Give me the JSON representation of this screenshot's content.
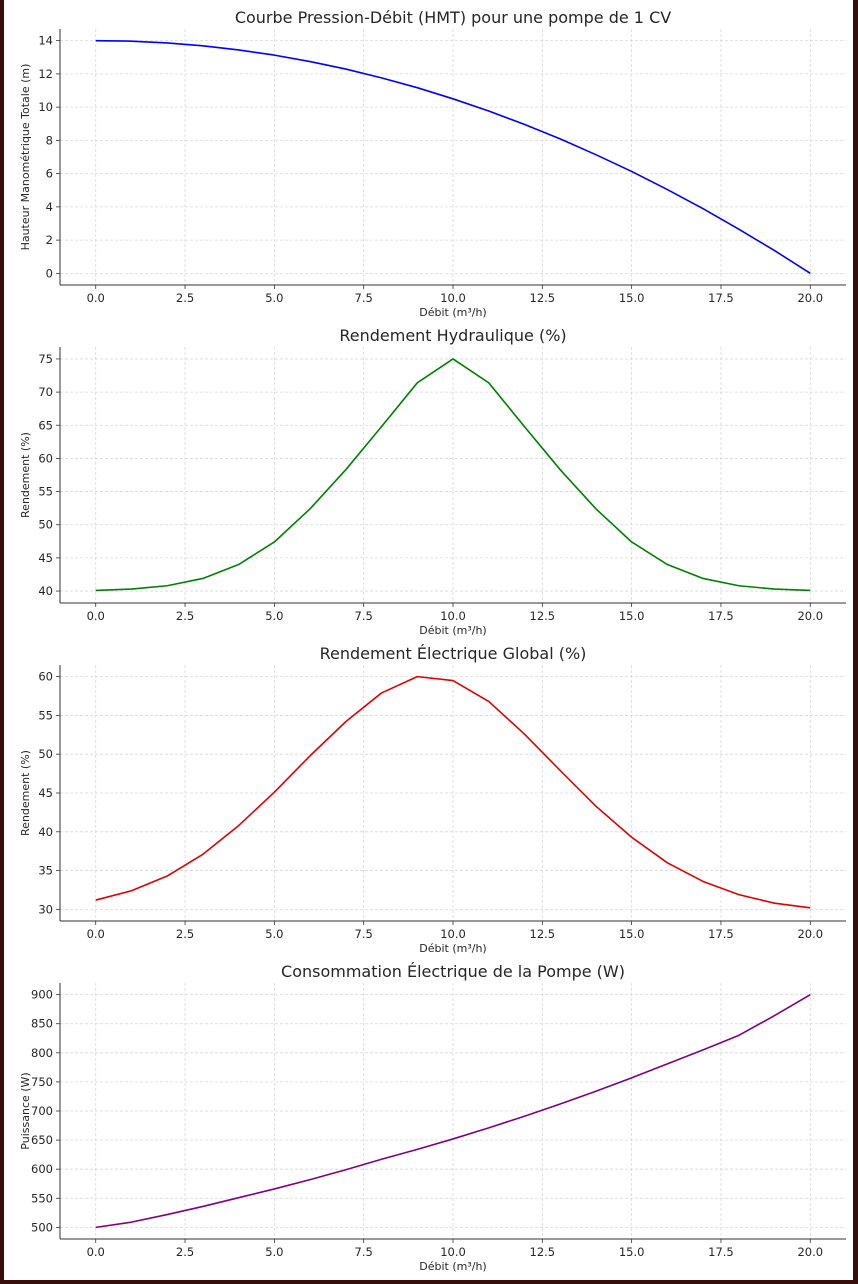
{
  "chart_data": [
    {
      "type": "line",
      "title": "Courbe Pression-Débit (HMT) pour une pompe de 1 CV",
      "xlabel": "Débit (m³/h)",
      "ylabel": "Hauteur Manométrique Totale (m)",
      "xlim": [
        -1,
        21
      ],
      "ylim": [
        -0.7,
        14.7
      ],
      "xticks": [
        "0.0",
        "2.5",
        "5.0",
        "7.5",
        "10.0",
        "12.5",
        "15.0",
        "17.5",
        "20.0"
      ],
      "yticks": [
        "0",
        "2",
        "4",
        "6",
        "8",
        "10",
        "12",
        "14"
      ],
      "grid": true,
      "color": "#0000ff",
      "series": [
        {
          "x": [
            0,
            1,
            2,
            3,
            4,
            5,
            6,
            7,
            8,
            9,
            10,
            11,
            12,
            13,
            14,
            15,
            16,
            17,
            18,
            19,
            20
          ],
          "values": [
            14.0,
            13.97,
            13.86,
            13.69,
            13.44,
            13.13,
            12.74,
            12.29,
            11.76,
            11.17,
            10.5,
            9.77,
            8.96,
            8.09,
            7.14,
            6.13,
            5.04,
            3.89,
            2.66,
            1.37,
            0.0
          ]
        }
      ]
    },
    {
      "type": "line",
      "title": "Rendement Hydraulique (%)",
      "xlabel": "Débit (m³/h)",
      "ylabel": "Rendement (%)",
      "xlim": [
        -1,
        21
      ],
      "ylim": [
        38.2,
        76.8
      ],
      "xticks": [
        "0.0",
        "2.5",
        "5.0",
        "7.5",
        "10.0",
        "12.5",
        "15.0",
        "17.5",
        "20.0"
      ],
      "yticks": [
        "40",
        "45",
        "50",
        "55",
        "60",
        "65",
        "70",
        "75"
      ],
      "grid": true,
      "color": "#008000",
      "series": [
        {
          "x": [
            0,
            1,
            2,
            3,
            4,
            5,
            6,
            7,
            8,
            9,
            10,
            11,
            12,
            13,
            14,
            15,
            16,
            17,
            18,
            19,
            20
          ],
          "values": [
            40.1,
            40.3,
            40.8,
            41.9,
            44.0,
            47.4,
            52.4,
            58.3,
            64.8,
            71.4,
            75.0,
            71.4,
            64.8,
            58.3,
            52.4,
            47.4,
            44.0,
            41.9,
            40.8,
            40.3,
            40.1
          ]
        }
      ]
    },
    {
      "type": "line",
      "title": "Rendement Électrique Global (%)",
      "xlabel": "Débit (m³/h)",
      "ylabel": "Rendement (%)",
      "xlim": [
        -1,
        21
      ],
      "ylim": [
        28.5,
        61.5
      ],
      "xticks": [
        "0.0",
        "2.5",
        "5.0",
        "7.5",
        "10.0",
        "12.5",
        "15.0",
        "17.5",
        "20.0"
      ],
      "yticks": [
        "30",
        "35",
        "40",
        "45",
        "50",
        "55",
        "60"
      ],
      "grid": true,
      "color": "#e00000",
      "series": [
        {
          "x": [
            0,
            1,
            2,
            3,
            4,
            5,
            6,
            7,
            8,
            9,
            10,
            11,
            12,
            13,
            14,
            15,
            16,
            17,
            18,
            19,
            20
          ],
          "values": [
            31.2,
            32.4,
            34.3,
            37.1,
            40.8,
            45.1,
            49.8,
            54.2,
            57.9,
            60.0,
            59.5,
            56.8,
            52.6,
            47.9,
            43.3,
            39.3,
            36.0,
            33.6,
            31.9,
            30.8,
            30.2
          ]
        }
      ]
    },
    {
      "type": "line",
      "title": "Consommation Électrique de la Pompe (W)",
      "xlabel": "Débit (m³/h)",
      "ylabel": "Puissance (W)",
      "xlim": [
        -1,
        21
      ],
      "ylim": [
        480,
        920
      ],
      "xticks": [
        "0.0",
        "2.5",
        "5.0",
        "7.5",
        "10.0",
        "12.5",
        "15.0",
        "17.5",
        "20.0"
      ],
      "yticks": [
        "500",
        "550",
        "600",
        "650",
        "700",
        "750",
        "800",
        "850",
        "900"
      ],
      "grid": true,
      "color": "#800080",
      "series": [
        {
          "x": [
            0,
            1,
            2,
            3,
            4,
            5,
            6,
            7,
            8,
            9,
            10,
            11,
            12,
            13,
            14,
            15,
            16,
            17,
            18,
            19,
            20
          ],
          "values": [
            500,
            509,
            522,
            536,
            551,
            566,
            582,
            599,
            617,
            634,
            652,
            671,
            691,
            712,
            734,
            757,
            781,
            805,
            830,
            864,
            900
          ]
        }
      ]
    }
  ]
}
